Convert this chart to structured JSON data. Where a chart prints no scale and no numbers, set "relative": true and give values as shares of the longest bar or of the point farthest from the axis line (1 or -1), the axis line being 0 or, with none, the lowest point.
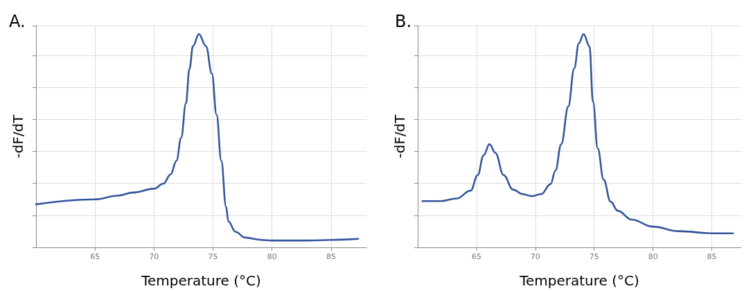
{
  "chart_data": [
    {
      "type": "line",
      "title": "A.",
      "xlabel": "Temperature (°C)",
      "ylabel": "-dF/dT",
      "relative": true,
      "xlim": [
        60,
        88
      ],
      "xticks": [
        65,
        70,
        75,
        80,
        85
      ],
      "grid": true,
      "marker": "none",
      "line_style": "solid",
      "x": [
        60,
        65,
        67,
        68.2,
        70,
        70.8,
        71.4,
        71.9,
        72.3,
        72.7,
        73,
        73.3,
        73.8,
        74.4,
        74.9,
        75.3,
        75.7,
        76.1,
        76.3,
        76.9,
        77.7,
        79.1,
        80,
        83.1,
        85,
        87.3
      ],
      "series": [
        {
          "color": "#34559a",
          "values": [
            0.202,
            0.225,
            0.243,
            0.257,
            0.275,
            0.299,
            0.342,
            0.406,
            0.514,
            0.675,
            0.837,
            0.944,
            1,
            0.944,
            0.815,
            0.622,
            0.406,
            0.191,
            0.122,
            0.073,
            0.046,
            0.035,
            0.032,
            0.032,
            0.035,
            0.04
          ]
        }
      ]
    },
    {
      "type": "line",
      "title": "B.",
      "xlabel": "Temperature (°C)",
      "ylabel": "-dF/dT",
      "relative": true,
      "xlim": [
        60,
        87.5
      ],
      "xticks": [
        65,
        70,
        75,
        80,
        85
      ],
      "grid": true,
      "marker": "none",
      "line_style": "solid",
      "x": [
        60.4,
        61.9,
        63.3,
        64.5,
        65.1,
        65.6,
        66.1,
        66.6,
        67.3,
        68.1,
        68.9,
        69.7,
        70.5,
        71.3,
        71.7,
        72.2,
        72.8,
        73.3,
        73.7,
        74.1,
        74.6,
        74.9,
        75.3,
        75.8,
        76.4,
        77,
        78.2,
        80,
        82.2,
        85,
        86.8
      ],
      "series": [
        {
          "color": "#34559a",
          "values": [
            0.217,
            0.217,
            0.229,
            0.266,
            0.339,
            0.432,
            0.484,
            0.443,
            0.339,
            0.271,
            0.25,
            0.24,
            0.25,
            0.297,
            0.359,
            0.484,
            0.661,
            0.839,
            0.958,
            1,
            0.943,
            0.682,
            0.464,
            0.318,
            0.214,
            0.172,
            0.13,
            0.097,
            0.076,
            0.066,
            0.066
          ]
        }
      ]
    }
  ]
}
